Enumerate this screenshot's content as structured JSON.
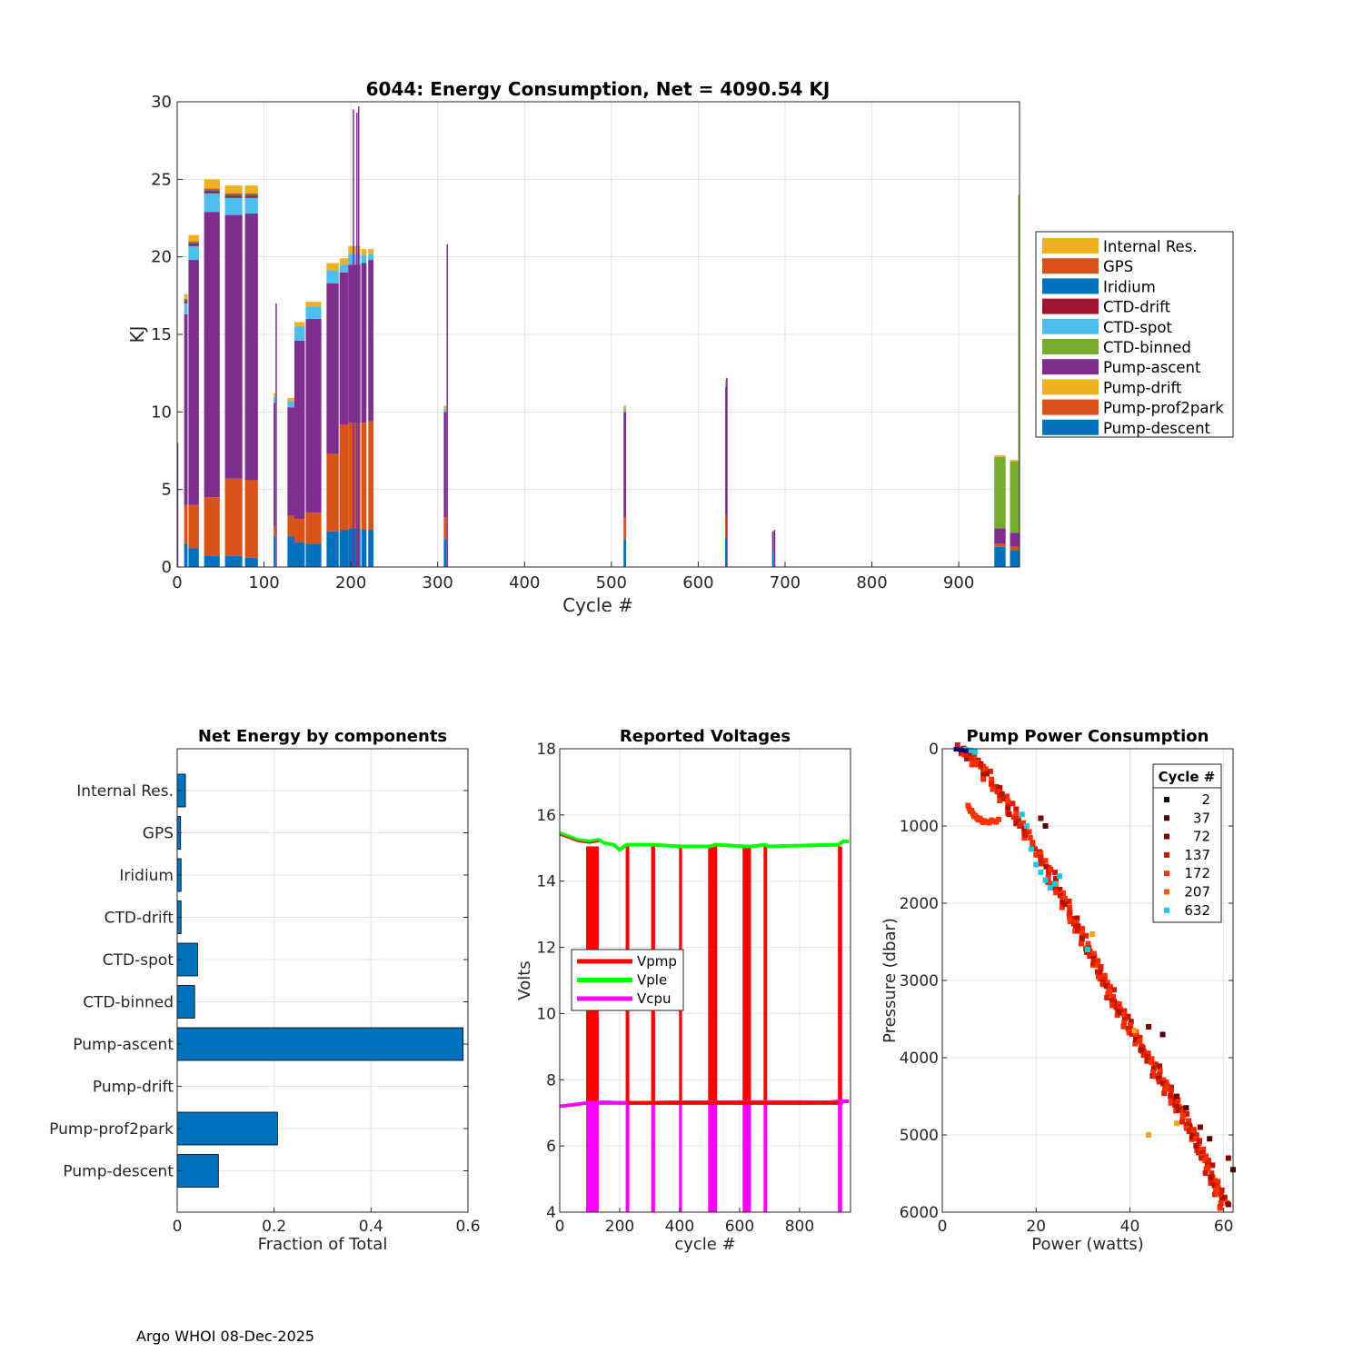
{
  "footer": "Argo WHOI 08-Dec-2025",
  "chart_data": [
    {
      "id": "energy",
      "type": "bar",
      "stacked": true,
      "title": "6044: Energy Consumption,  Net = 4090.54 KJ",
      "xlabel": "Cycle #",
      "ylabel": "KJ",
      "xlim": [
        0,
        970
      ],
      "ylim": [
        0,
        30
      ],
      "xticks": [
        0,
        100,
        200,
        300,
        400,
        500,
        600,
        700,
        800,
        900
      ],
      "yticks": [
        0,
        5,
        10,
        15,
        20,
        25,
        30
      ],
      "grid": true,
      "legend_position": "right",
      "series": [
        {
          "name": "Pump-descent",
          "color": "#0072BD"
        },
        {
          "name": "Pump-prof2park",
          "color": "#D95319"
        },
        {
          "name": "Pump-drift",
          "color": "#EDB120"
        },
        {
          "name": "Pump-ascent",
          "color": "#7E2F8E"
        },
        {
          "name": "CTD-binned",
          "color": "#77AC30"
        },
        {
          "name": "CTD-spot",
          "color": "#4DBEEE"
        },
        {
          "name": "CTD-drift",
          "color": "#A2142F"
        },
        {
          "name": "Iridium",
          "color": "#0072BD"
        },
        {
          "name": "GPS",
          "color": "#D95319"
        },
        {
          "name": "Internal Res.",
          "color": "#EDB120"
        }
      ],
      "segments": [
        {
          "from": 8,
          "to": 12,
          "values": [
            1.5,
            2.5,
            0,
            12.3,
            0,
            0.7,
            0.1,
            0.1,
            0.1,
            0.3
          ]
        },
        {
          "from": 13,
          "to": 25,
          "values": [
            1.2,
            2.8,
            0,
            15.8,
            0,
            0.9,
            0.1,
            0.1,
            0.1,
            0.4
          ]
        },
        {
          "from": 31,
          "to": 49,
          "values": [
            0.7,
            3.8,
            0,
            18.4,
            0,
            1.2,
            0.1,
            0.1,
            0.1,
            0.6
          ]
        },
        {
          "from": 55,
          "to": 75,
          "values": [
            0.7,
            5.0,
            0,
            17.0,
            0,
            1.1,
            0.1,
            0.1,
            0.1,
            0.5
          ]
        },
        {
          "from": 78,
          "to": 93,
          "values": [
            0.6,
            5.0,
            0,
            17.2,
            0,
            1.0,
            0.1,
            0.1,
            0.1,
            0.5
          ]
        },
        {
          "from": 111,
          "to": 113,
          "values": [
            2.0,
            0.6,
            0,
            8.0,
            0,
            0.4,
            0,
            0,
            0,
            0.2
          ]
        },
        {
          "from": 127,
          "to": 135,
          "values": [
            2.0,
            1.3,
            0,
            7.0,
            0,
            0.4,
            0,
            0,
            0,
            0.2
          ]
        },
        {
          "from": 135,
          "to": 147,
          "values": [
            1.6,
            1.5,
            0,
            11.5,
            0,
            0.9,
            0,
            0,
            0,
            0.3
          ]
        },
        {
          "from": 148,
          "to": 166,
          "values": [
            1.5,
            2.0,
            0,
            12.5,
            0,
            0.8,
            0,
            0,
            0,
            0.3
          ]
        },
        {
          "from": 172,
          "to": 186,
          "values": [
            2.3,
            5.0,
            0,
            11.0,
            0,
            0.8,
            0,
            0,
            0,
            0.5
          ]
        },
        {
          "from": 187,
          "to": 197,
          "values": [
            2.4,
            6.8,
            0,
            9.8,
            0,
            0.5,
            0,
            0,
            0,
            0.4
          ]
        },
        {
          "from": 197,
          "to": 211,
          "values": [
            2.5,
            6.8,
            0,
            10.2,
            0,
            0.7,
            0,
            0,
            0,
            0.5
          ]
        },
        {
          "from": 212,
          "to": 218,
          "values": [
            2.4,
            6.9,
            0,
            10.3,
            0,
            0.5,
            0,
            0,
            0,
            0.4
          ]
        },
        {
          "from": 220,
          "to": 226,
          "values": [
            2.4,
            7.0,
            0,
            10.4,
            0,
            0.4,
            0,
            0,
            0,
            0.3
          ]
        },
        {
          "from": 307,
          "to": 310,
          "values": [
            1.8,
            1.4,
            0,
            6.8,
            0,
            0.2,
            0,
            0,
            0,
            0.2
          ]
        },
        {
          "from": 514,
          "to": 517,
          "values": [
            1.8,
            1.4,
            0,
            6.8,
            0,
            0.2,
            0,
            0,
            0,
            0.2
          ]
        },
        {
          "from": 631,
          "to": 633,
          "values": [
            1.9,
            1.5,
            0,
            8.2,
            0,
            0.3,
            0,
            0,
            0,
            0.2
          ]
        },
        {
          "from": 685,
          "to": 687,
          "values": [
            0.9,
            0,
            0,
            1.4,
            0,
            0,
            0,
            0,
            0,
            0
          ]
        },
        {
          "from": 941,
          "to": 954,
          "values": [
            1.3,
            0.2,
            0,
            1.0,
            4.6,
            0,
            0,
            0,
            0,
            0.1
          ]
        },
        {
          "from": 959,
          "to": 969,
          "values": [
            1.1,
            0.2,
            0,
            0.9,
            4.6,
            0,
            0,
            0,
            0,
            0.1
          ]
        },
        {
          "from": 968.5,
          "to": 970,
          "values": [
            1.1,
            0.2,
            0,
            0.9,
            21.8,
            0,
            0,
            0,
            0,
            0
          ]
        }
      ],
      "spikes": [
        {
          "x": 114,
          "value": 17.0,
          "color": "#7E2F8E"
        },
        {
          "x": 203,
          "value": 29.5,
          "color": "#7E2F8E"
        },
        {
          "x": 207,
          "value": 29.3,
          "color": "#7E2F8E"
        },
        {
          "x": 209,
          "value": 29.7,
          "color": "#7E2F8E"
        },
        {
          "x": 311,
          "value": 20.8,
          "color": "#7E2F8E"
        },
        {
          "x": 633,
          "value": 12.2,
          "color": "#7E2F8E"
        },
        {
          "x": 688,
          "value": 2.4,
          "color": "#7E2F8E"
        },
        {
          "x": 0.5,
          "value": 8.0,
          "color": "#7E2F8E"
        }
      ]
    },
    {
      "id": "components",
      "type": "bar",
      "orientation": "horizontal",
      "title": "Net Energy by components",
      "xlabel": "Fraction of Total",
      "xlim": [
        0,
        0.6
      ],
      "xticks": [
        0,
        0.2,
        0.4,
        0.6
      ],
      "grid": true,
      "color": "#0072BD",
      "categories": [
        "Internal Res.",
        "GPS",
        "Iridium",
        "CTD-drift",
        "CTD-spot",
        "CTD-binned",
        "Pump-ascent",
        "Pump-drift",
        "Pump-prof2park",
        "Pump-descent"
      ],
      "values": [
        0.017,
        0.007,
        0.008,
        0.008,
        0.042,
        0.036,
        0.59,
        0.0,
        0.207,
        0.085
      ]
    },
    {
      "id": "voltages",
      "type": "line",
      "title": "Reported Voltages",
      "xlabel": "cycle #",
      "ylabel": "Volts",
      "xlim": [
        0,
        970
      ],
      "ylim": [
        4,
        18
      ],
      "xticks": [
        0,
        200,
        400,
        600,
        800
      ],
      "yticks": [
        4,
        6,
        8,
        10,
        12,
        14,
        16,
        18
      ],
      "grid": true,
      "legend_position": "left-middle",
      "series": [
        {
          "name": "Vpmp",
          "color": "#FF0000"
        },
        {
          "name": "Vple",
          "color": "#00FF00"
        },
        {
          "name": "Vcpu",
          "color": "#FF00FF"
        }
      ],
      "vple_points": [
        [
          0,
          15.45
        ],
        [
          30,
          15.35
        ],
        [
          60,
          15.25
        ],
        [
          100,
          15.2
        ],
        [
          130,
          15.25
        ],
        [
          150,
          15.15
        ],
        [
          180,
          15.1
        ],
        [
          200,
          14.95
        ],
        [
          215,
          15.05
        ],
        [
          225,
          15.1
        ],
        [
          300,
          15.1
        ],
        [
          310,
          15.1
        ],
        [
          404,
          15.05
        ],
        [
          500,
          15.05
        ],
        [
          520,
          15.1
        ],
        [
          620,
          15.05
        ],
        [
          640,
          15.05
        ],
        [
          685,
          15.1
        ],
        [
          695,
          15.05
        ],
        [
          930,
          15.1
        ],
        [
          945,
          15.2
        ],
        [
          965,
          15.2
        ]
      ],
      "vcpu_points": [
        [
          0,
          7.2
        ],
        [
          50,
          7.25
        ],
        [
          90,
          7.3
        ],
        [
          150,
          7.32
        ],
        [
          210,
          7.3
        ],
        [
          400,
          7.32
        ],
        [
          700,
          7.33
        ],
        [
          900,
          7.32
        ],
        [
          930,
          7.35
        ],
        [
          965,
          7.35
        ]
      ],
      "vpmp_bands": [
        [
          88,
          130
        ],
        [
          220,
          232
        ],
        [
          305,
          318
        ],
        [
          398,
          408
        ],
        [
          495,
          525
        ],
        [
          610,
          638
        ],
        [
          680,
          692
        ],
        [
          928,
          942
        ]
      ],
      "vpmp_base": 7.3,
      "vpmp_top": 15.05,
      "vcpu_drop_bands": [
        [
          88,
          130
        ],
        [
          220,
          232
        ],
        [
          305,
          318
        ],
        [
          398,
          408
        ],
        [
          495,
          525
        ],
        [
          610,
          638
        ],
        [
          680,
          692
        ],
        [
          928,
          942
        ]
      ],
      "vcpu_drop_to": 4.0
    },
    {
      "id": "pump",
      "type": "scatter",
      "title": "Pump Power Consumption",
      "xlabel": "Power (watts)",
      "ylabel": "Pressure (dbar)",
      "xlim": [
        0,
        62
      ],
      "ylim": [
        0,
        6000
      ],
      "y_reversed": true,
      "xticks": [
        0,
        20,
        40,
        60
      ],
      "yticks": [
        0,
        1000,
        2000,
        3000,
        4000,
        5000,
        6000
      ],
      "grid": true,
      "legend_title": "Cycle #",
      "legend_position": "top-right",
      "series": [
        {
          "name": "2",
          "color": "#1A0000"
        },
        {
          "name": "37",
          "color": "#4D0000"
        },
        {
          "name": "72",
          "color": "#800000"
        },
        {
          "name": "137",
          "color": "#CC1A00"
        },
        {
          "name": "172",
          "color": "#FF3300"
        },
        {
          "name": "207",
          "color": "#FF5500"
        },
        {
          "name": "632",
          "color": "#1AC8E6"
        }
      ],
      "main_trend": [
        [
          4,
          0
        ],
        [
          8,
          200
        ],
        [
          15,
          800
        ],
        [
          22,
          1500
        ],
        [
          28,
          2200
        ],
        [
          33,
          2800
        ],
        [
          37,
          3300
        ],
        [
          42,
          3800
        ],
        [
          47,
          4300
        ],
        [
          52,
          4800
        ],
        [
          56,
          5300
        ],
        [
          60,
          5900
        ]
      ],
      "branch_trend": [
        [
          5.5,
          750
        ],
        [
          7,
          880
        ],
        [
          9,
          950
        ],
        [
          12,
          930
        ]
      ],
      "darker_offset_points": [
        [
          21,
          900
        ],
        [
          22,
          1000
        ],
        [
          44,
          3600
        ],
        [
          47,
          3700
        ],
        [
          50,
          4500
        ],
        [
          52,
          4650
        ],
        [
          55,
          4900
        ],
        [
          57,
          5050
        ],
        [
          61,
          5300
        ],
        [
          62,
          5450
        ],
        [
          61,
          5900
        ]
      ],
      "cyan_points": [
        [
          5,
          10
        ],
        [
          6,
          20
        ],
        [
          7,
          40
        ],
        [
          17,
          850
        ],
        [
          18,
          1000
        ],
        [
          19,
          1300
        ],
        [
          20,
          1500
        ],
        [
          21,
          1600
        ],
        [
          22,
          1700
        ],
        [
          23,
          1800
        ],
        [
          24,
          1750
        ],
        [
          25,
          1650
        ],
        [
          31,
          2600
        ]
      ],
      "orange_points": [
        [
          32,
          2400
        ],
        [
          41,
          3650
        ],
        [
          50,
          4850
        ],
        [
          44,
          5000
        ]
      ],
      "navy_points": [
        [
          3,
          0
        ],
        [
          4,
          10
        ],
        [
          5,
          20
        ]
      ]
    }
  ]
}
